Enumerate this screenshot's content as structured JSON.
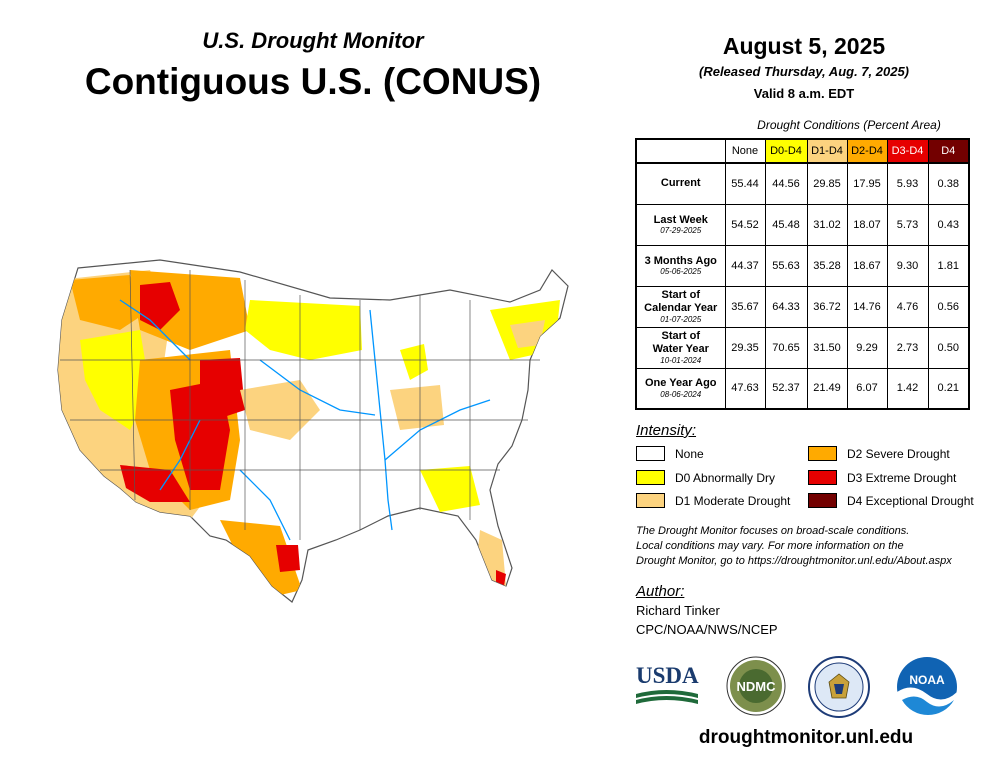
{
  "header": {
    "subtitle": "U.S. Drought Monitor",
    "title": "Contiguous U.S. (CONUS)",
    "date": "August 5, 2025",
    "released": "(Released Thursday, Aug. 7, 2025)",
    "valid": "Valid 8 a.m. EDT"
  },
  "table": {
    "caption": "Drought Conditions (Percent Area)",
    "columns": [
      {
        "label": "None",
        "color": "#ffffff",
        "text_color": "#000000"
      },
      {
        "label": "D0-D4",
        "color": "#ffff00",
        "text_color": "#000000"
      },
      {
        "label": "D1-D4",
        "color": "#fcd37f",
        "text_color": "#000000"
      },
      {
        "label": "D2-D4",
        "color": "#ffaa00",
        "text_color": "#000000"
      },
      {
        "label": "D3-D4",
        "color": "#e60000",
        "text_color": "#ffffff"
      },
      {
        "label": "D4",
        "color": "#730000",
        "text_color": "#ffffff"
      }
    ],
    "rows": [
      {
        "label": "Current",
        "label2": "",
        "date": "",
        "values": [
          "55.44",
          "44.56",
          "29.85",
          "17.95",
          "5.93",
          "0.38"
        ]
      },
      {
        "label": "Last Week",
        "label2": "",
        "date": "07-29-2025",
        "values": [
          "54.52",
          "45.48",
          "31.02",
          "18.07",
          "5.73",
          "0.43"
        ]
      },
      {
        "label": "3 Months Ago",
        "label2": "",
        "date": "05-06-2025",
        "values": [
          "44.37",
          "55.63",
          "35.28",
          "18.67",
          "9.30",
          "1.81"
        ]
      },
      {
        "label": "Start of",
        "label2": "Calendar Year",
        "date": "01-07-2025",
        "values": [
          "35.67",
          "64.33",
          "36.72",
          "14.76",
          "4.76",
          "0.56"
        ]
      },
      {
        "label": "Start of",
        "label2": "Water Year",
        "date": "10-01-2024",
        "values": [
          "29.35",
          "70.65",
          "31.50",
          "9.29",
          "2.73",
          "0.50"
        ]
      },
      {
        "label": "One Year Ago",
        "label2": "",
        "date": "08-06-2024",
        "values": [
          "47.63",
          "52.37",
          "21.49",
          "6.07",
          "1.42",
          "0.21"
        ]
      }
    ]
  },
  "legend": {
    "heading": "Intensity:",
    "items": [
      {
        "label": "None",
        "color": "#ffffff"
      },
      {
        "label": "D0 Abnormally Dry",
        "color": "#ffff00"
      },
      {
        "label": "D1 Moderate Drought",
        "color": "#fcd37f"
      },
      {
        "label": "D2 Severe Drought",
        "color": "#ffaa00"
      },
      {
        "label": "D3 Extreme Drought",
        "color": "#e60000"
      },
      {
        "label": "D4 Exceptional Drought",
        "color": "#730000"
      }
    ]
  },
  "note": {
    "lines": [
      "The Drought Monitor focuses on broad-scale conditions.",
      "Local conditions may vary. For more information on the",
      "Drought Monitor, go to https://droughtmonitor.unl.edu/About.aspx"
    ]
  },
  "author": {
    "heading": "Author:",
    "name": "Richard Tinker",
    "org": "CPC/NOAA/NWS/NCEP"
  },
  "logos": {
    "usda": "USDA",
    "ndmc": "NDMC",
    "noaa": "NOAA"
  },
  "footer": {
    "url": "droughtmonitor.unl.edu"
  },
  "map_colors": {
    "none": "#ffffff",
    "d0": "#ffff00",
    "d1": "#fcd37f",
    "d2": "#ffaa00",
    "d3": "#e60000",
    "d4": "#730000",
    "rivers": "#0096ff",
    "borders": "#555555"
  }
}
